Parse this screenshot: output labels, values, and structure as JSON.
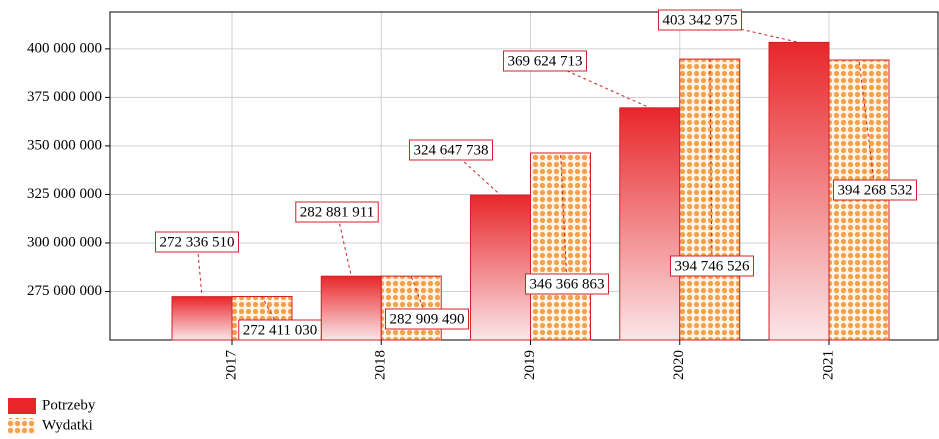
{
  "chart_data": {
    "type": "bar",
    "categories": [
      "2017",
      "2018",
      "2019",
      "2020",
      "2021"
    ],
    "series": [
      {
        "name": "Potrzeby",
        "color": "#e8262a",
        "values": [
          272336510,
          282881911,
          324647738,
          369624713,
          403342975
        ],
        "value_labels": [
          "272 336 510",
          "282 881 911",
          "324 647 738",
          "369 624 713",
          "403 342 975"
        ]
      },
      {
        "name": "Wydatki",
        "color": "#f5a04a",
        "values": [
          272411030,
          282909490,
          346366863,
          394746526,
          394268532
        ],
        "value_labels": [
          "272 411 030",
          "282 909 490",
          "346 366 863",
          "394 746 526",
          "394 268 532"
        ]
      }
    ],
    "ylim": [
      250000000,
      419000000
    ],
    "yticks": [
      {
        "value": 275000000,
        "label": "275 000 000"
      },
      {
        "value": 300000000,
        "label": "300 000 000"
      },
      {
        "value": 325000000,
        "label": "325 000 000"
      },
      {
        "value": 350000000,
        "label": "350 000 000"
      },
      {
        "value": 375000000,
        "label": "375 000 000"
      },
      {
        "value": 400000000,
        "label": "400 000 000"
      }
    ],
    "grid": true,
    "legend": "bottom-left"
  }
}
